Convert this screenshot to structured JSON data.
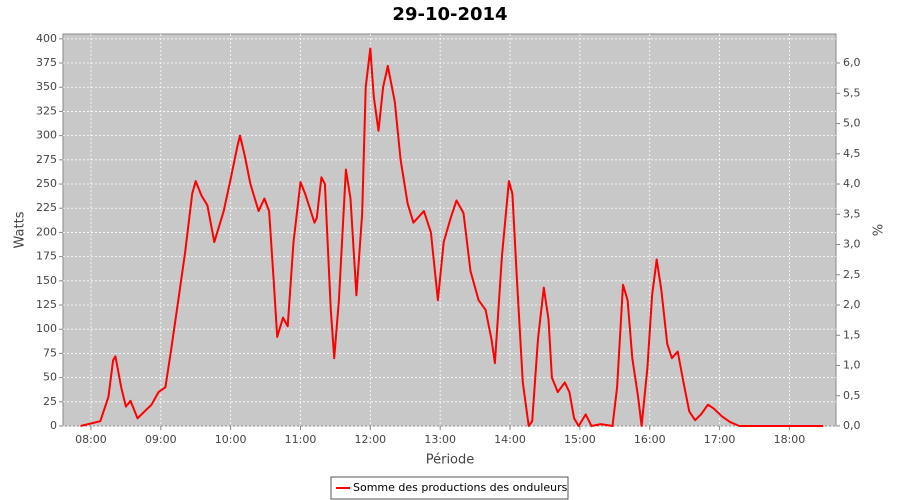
{
  "chart_data": {
    "type": "line",
    "title": "29-10-2014",
    "x_label": "Période",
    "y_label": "Watts",
    "y2_label": "%",
    "x": [
      "07:51",
      "08:08",
      "08:15",
      "08:19",
      "08:21",
      "08:26",
      "08:30",
      "08:34",
      "08:40",
      "08:46",
      "08:52",
      "08:58",
      "09:04",
      "09:09",
      "09:15",
      "09:21",
      "09:27",
      "09:30",
      "09:35",
      "09:40",
      "09:46",
      "09:54",
      "10:00",
      "10:06",
      "10:08",
      "10:12",
      "10:17",
      "10:24",
      "10:29",
      "10:33",
      "10:37",
      "10:40",
      "10:45",
      "10:49",
      "10:54",
      "11:00",
      "11:04",
      "11:12",
      "11:14",
      "11:18",
      "11:21",
      "11:26",
      "11:29",
      "11:33",
      "11:39",
      "11:43",
      "11:48",
      "11:53",
      "11:56",
      "12:00",
      "12:03",
      "12:07",
      "12:11",
      "12:15",
      "12:21",
      "12:26",
      "12:32",
      "12:37",
      "12:46",
      "12:52",
      "12:58",
      "13:03",
      "13:09",
      "13:14",
      "13:20",
      "13:26",
      "13:33",
      "13:39",
      "13:44",
      "13:47",
      "13:53",
      "13:59",
      "14:02",
      "14:06",
      "14:11",
      "14:16",
      "14:19",
      "14:24",
      "14:29",
      "14:33",
      "14:36",
      "14:41",
      "14:47",
      "14:51",
      "14:55",
      "14:59",
      "15:05",
      "15:10",
      "15:18",
      "15:28",
      "15:32",
      "15:37",
      "15:41",
      "15:45",
      "15:50",
      "15:53",
      "15:58",
      "16:02",
      "16:06",
      "16:10",
      "16:15",
      "16:19",
      "16:24",
      "16:29",
      "16:34",
      "16:39",
      "16:44",
      "16:50",
      "16:55",
      "17:02",
      "17:09",
      "17:17",
      "18:29"
    ],
    "series": [
      {
        "name": "Somme des productions des onduleurs",
        "color": "#ff0000",
        "values": [
          0,
          5,
          30,
          68,
          72,
          40,
          20,
          26,
          8,
          15,
          22,
          35,
          40,
          80,
          130,
          180,
          240,
          253,
          238,
          228,
          190,
          222,
          255,
          290,
          300,
          280,
          250,
          222,
          235,
          222,
          150,
          92,
          112,
          103,
          190,
          252,
          240,
          210,
          215,
          257,
          250,
          120,
          70,
          130,
          265,
          235,
          135,
          220,
          350,
          390,
          340,
          305,
          350,
          372,
          335,
          275,
          230,
          210,
          222,
          200,
          130,
          190,
          215,
          233,
          220,
          160,
          130,
          120,
          90,
          65,
          175,
          253,
          240,
          150,
          45,
          0,
          5,
          90,
          143,
          110,
          50,
          35,
          45,
          35,
          8,
          0,
          12,
          0,
          2,
          0,
          40,
          146,
          130,
          70,
          30,
          0,
          60,
          135,
          172,
          140,
          85,
          70,
          77,
          45,
          15,
          6,
          12,
          22,
          18,
          10,
          4,
          0,
          0
        ]
      }
    ],
    "xlim": [
      "07:36",
      "18:40"
    ],
    "xticks": [
      "08:00",
      "09:00",
      "10:00",
      "11:00",
      "12:00",
      "13:00",
      "14:00",
      "15:00",
      "16:00",
      "17:00",
      "18:00"
    ],
    "ylim": [
      0,
      405
    ],
    "yticks": [
      0,
      25,
      50,
      75,
      100,
      125,
      150,
      175,
      200,
      225,
      250,
      275,
      300,
      325,
      350,
      375,
      400
    ],
    "y2lim": [
      0,
      6.48
    ],
    "y2ticks": [
      {
        "value": 0,
        "label": "0,0"
      },
      {
        "value": 0.5,
        "label": "0,5"
      },
      {
        "value": 1,
        "label": "1,0"
      },
      {
        "value": 1.5,
        "label": "1,5"
      },
      {
        "value": 2,
        "label": "2,0"
      },
      {
        "value": 2.5,
        "label": "2,5"
      },
      {
        "value": 3,
        "label": "3,0"
      },
      {
        "value": 3.5,
        "label": "3,5"
      },
      {
        "value": 4,
        "label": "4,0"
      },
      {
        "value": 4.5,
        "label": "4,5"
      },
      {
        "value": 5,
        "label": "5,0"
      },
      {
        "value": 5.5,
        "label": "5,5"
      },
      {
        "value": 6,
        "label": "6,0"
      }
    ],
    "grid": true,
    "legend": "bottom"
  }
}
